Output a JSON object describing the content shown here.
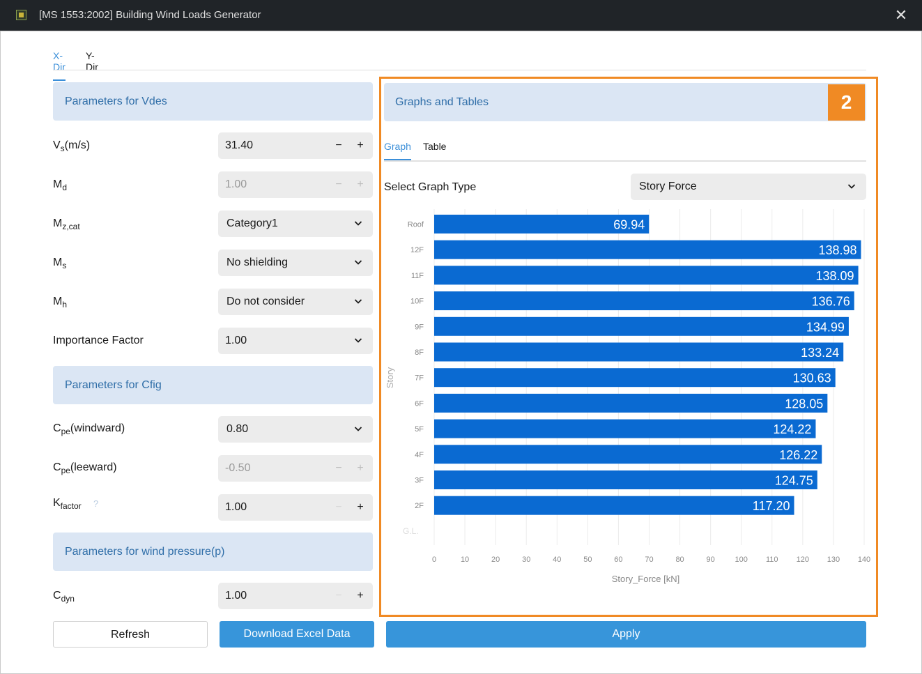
{
  "window": {
    "title": "[MS 1553:2002] Building Wind Loads Generator",
    "close_glyph": "✕"
  },
  "direction_tabs": [
    {
      "label": "X-Dir",
      "active": true
    },
    {
      "label": "Y-Dir",
      "active": false
    }
  ],
  "sections": {
    "vdes": "Parameters for Vdes",
    "cfig": "Parameters for Cfig",
    "pressure": "Parameters for wind pressure(p)"
  },
  "params": {
    "vs": {
      "main": "V",
      "sub": "s",
      "suffix": "(m/s)",
      "value": "31.40",
      "minus": "−",
      "plus": "+"
    },
    "md": {
      "main": "M",
      "sub": "d",
      "suffix": "",
      "value": "1.00",
      "minus": "−",
      "plus": "+"
    },
    "mzcat": {
      "main": "M",
      "sub": "z,cat",
      "suffix": "",
      "value": "Category1"
    },
    "ms": {
      "main": "M",
      "sub": "s",
      "suffix": "",
      "value": "No shielding"
    },
    "mh": {
      "main": "M",
      "sub": "h",
      "suffix": "",
      "value": "Do not consider"
    },
    "importance": {
      "label": "Importance Factor",
      "value": "1.00"
    },
    "cpe_windward": {
      "main": "C",
      "sub": "pe",
      "suffix": "(windward)",
      "value": "0.80"
    },
    "cpe_leeward": {
      "main": "C",
      "sub": "pe",
      "suffix": "(leeward)",
      "value": "-0.50",
      "minus": "−",
      "plus": "+"
    },
    "kfactor": {
      "main": "K",
      "sub": "factor",
      "suffix": "",
      "value": "1.00",
      "help": "?",
      "minus": "−",
      "plus": "+"
    },
    "cdyn": {
      "main": "C",
      "sub": "dyn",
      "suffix": "",
      "value": "1.00",
      "minus": "−",
      "plus": "+"
    }
  },
  "buttons": {
    "refresh": "Refresh",
    "download": "Download Excel Data",
    "apply": "Apply"
  },
  "graphs_panel": {
    "header": "Graphs and Tables",
    "badge": "2",
    "tabs": [
      {
        "label": "Graph",
        "active": true
      },
      {
        "label": "Table",
        "active": false
      }
    ],
    "select_label": "Select Graph Type",
    "select_value": "Story Force"
  },
  "colors": {
    "bar": "#0a6ad2",
    "accent": "#3b8fd9",
    "highlight": "#f08a24",
    "section_bg": "#dbe6f4"
  },
  "chart_data": {
    "type": "bar",
    "orientation": "horizontal",
    "categories": [
      "Roof",
      "12F",
      "11F",
      "10F",
      "9F",
      "8F",
      "7F",
      "6F",
      "5F",
      "4F",
      "3F",
      "2F"
    ],
    "values": [
      69.94,
      138.98,
      138.09,
      136.76,
      134.99,
      133.24,
      130.63,
      128.05,
      124.22,
      126.22,
      124.75,
      117.2
    ],
    "data_labels": [
      "69.94",
      "138.98",
      "138.09",
      "136.76",
      "134.99",
      "133.24",
      "130.63",
      "128.05",
      "124.22",
      "126.22",
      "124.75",
      "117.20"
    ],
    "xlabel": "Story_Force [kN]",
    "ylabel": "Story",
    "xlim": [
      0,
      140
    ],
    "x_ticks": [
      0,
      10,
      20,
      30,
      40,
      50,
      60,
      70,
      80,
      90,
      100,
      110,
      120,
      130,
      140
    ],
    "grid": true,
    "last_row_label": "G.L."
  }
}
